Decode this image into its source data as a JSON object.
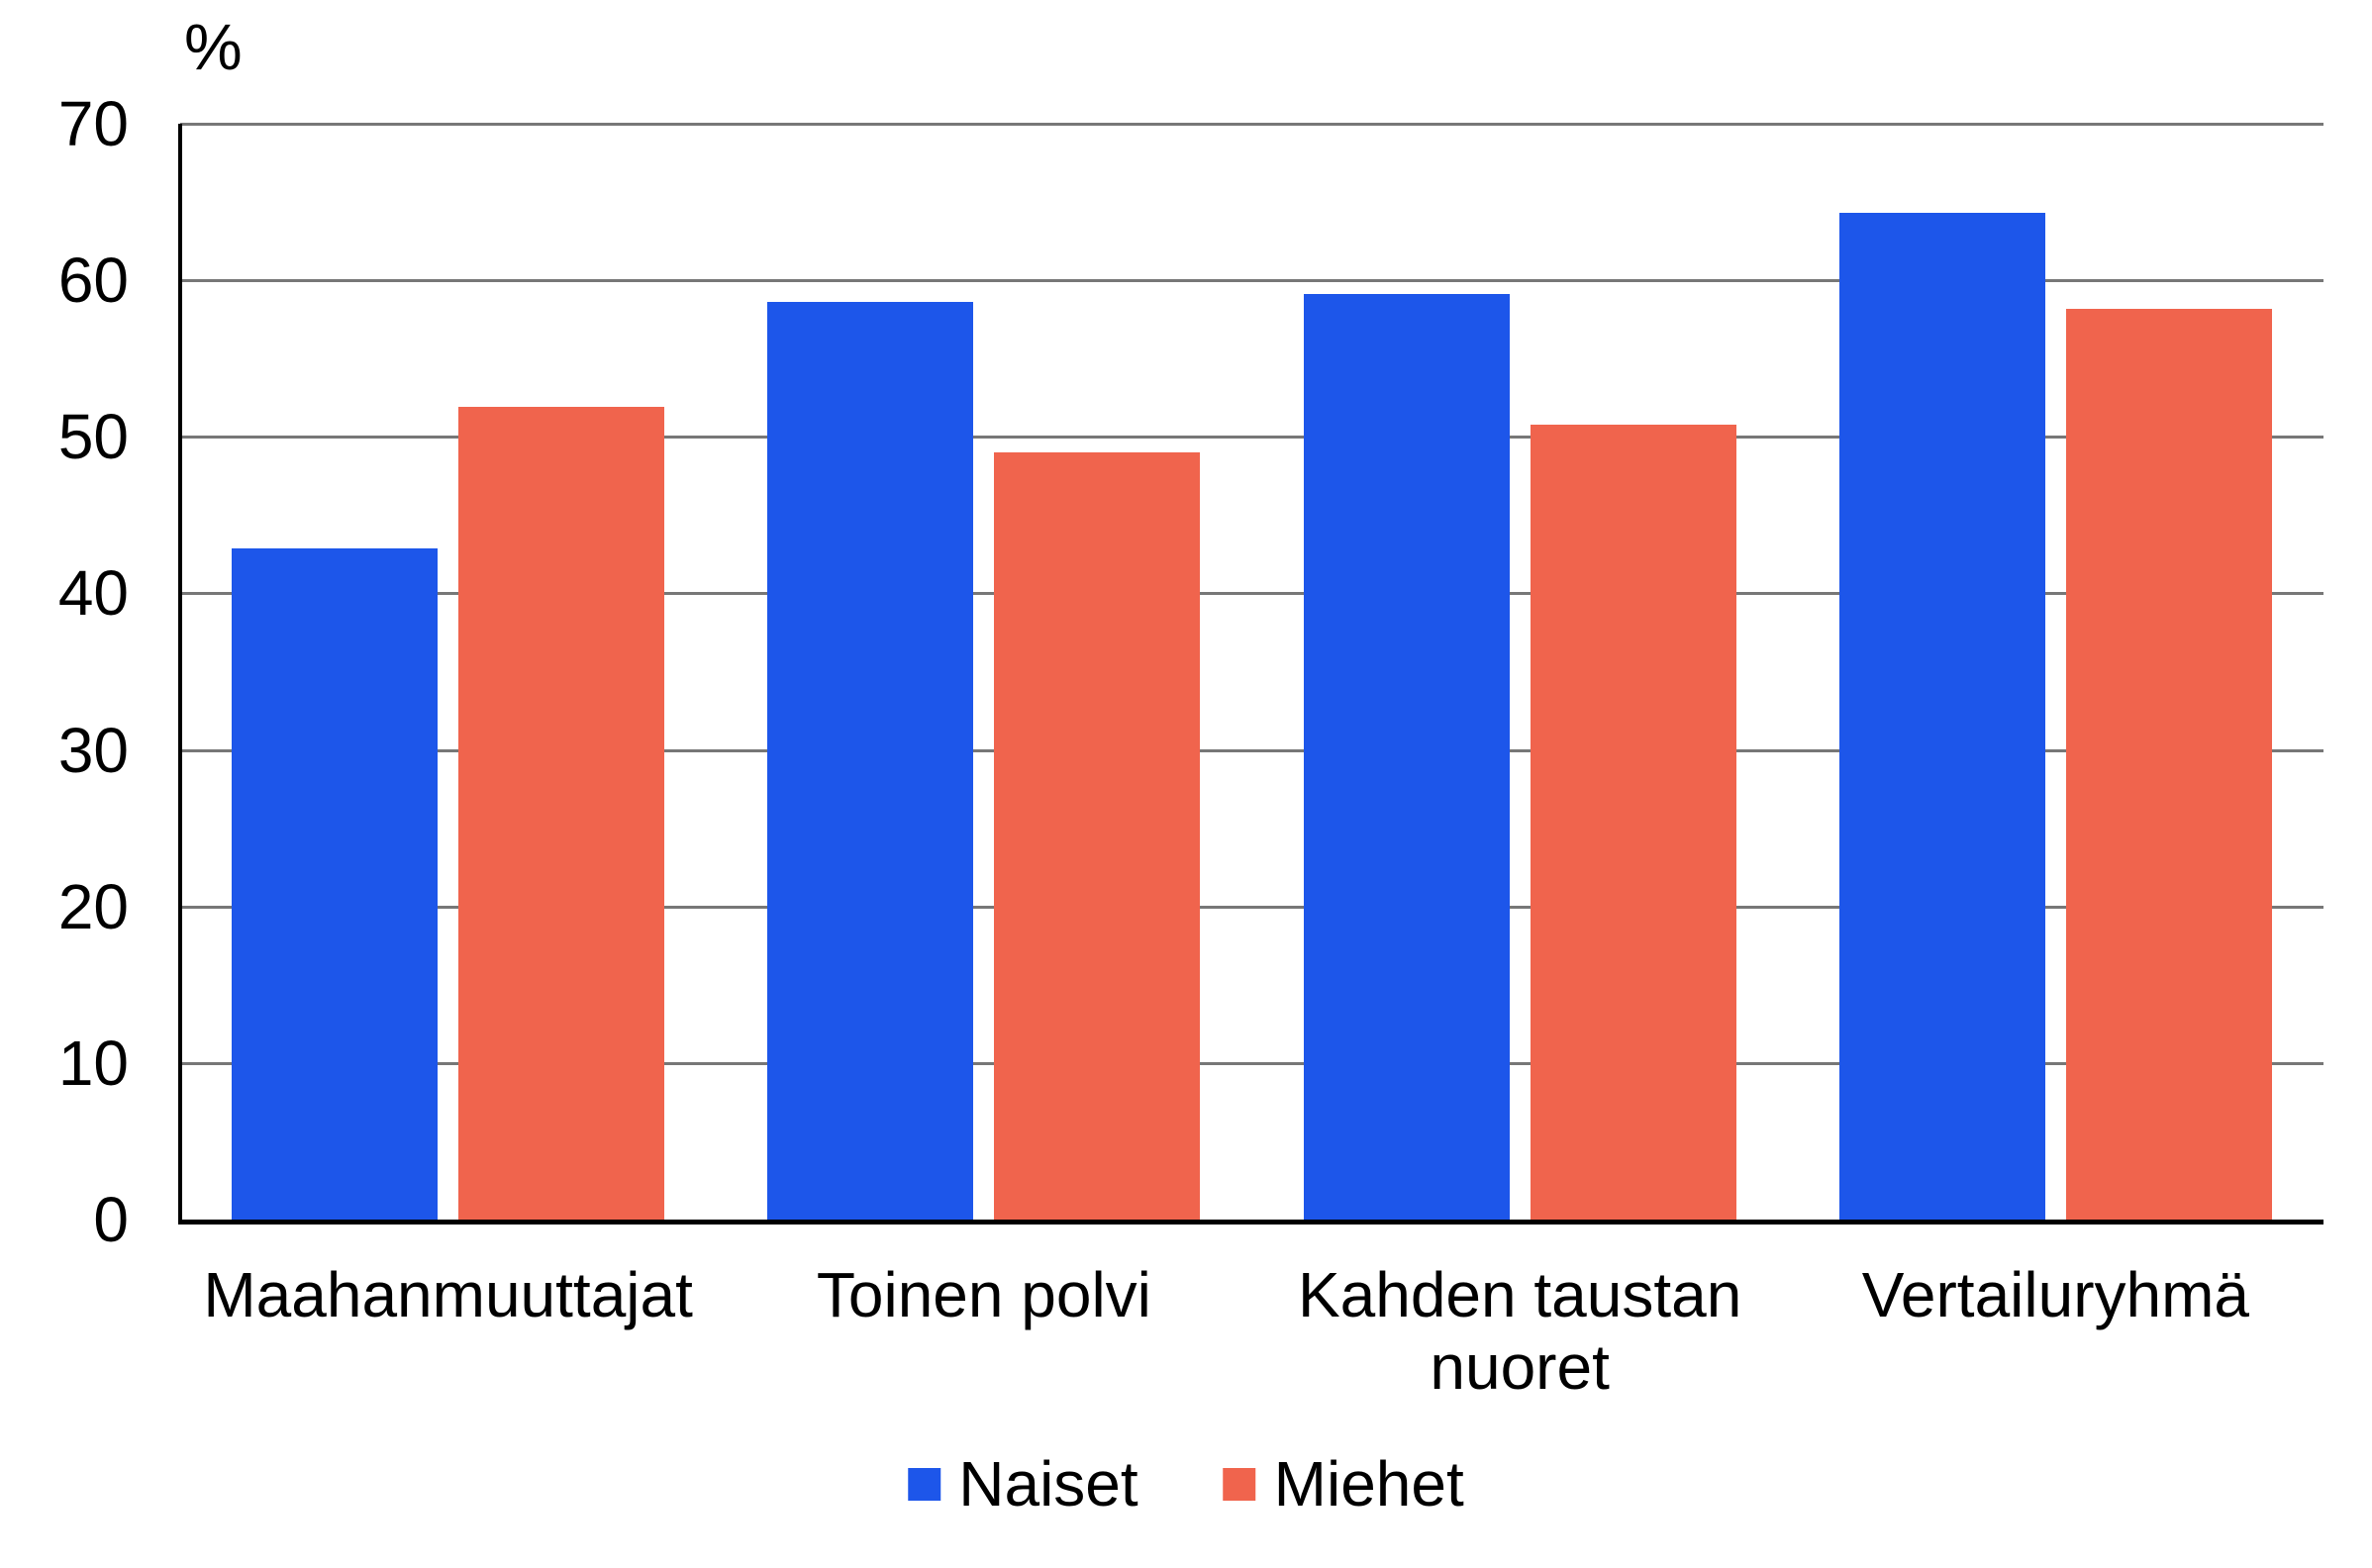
{
  "chart_data": {
    "type": "bar",
    "title": "",
    "ylabel": "%",
    "xlabel": "",
    "categories": [
      "Maahanmuuttajat",
      "Toinen polvi",
      "Kahden taustan\nnuoret",
      "Vertailuryhmä"
    ],
    "series": [
      {
        "name": "Naiset",
        "color": "#1d56ea",
        "values": [
          42.9,
          58.6,
          59.1,
          64.3
        ]
      },
      {
        "name": "Miehet",
        "color": "#f0644d",
        "values": [
          51.9,
          49.0,
          50.8,
          58.2
        ]
      }
    ],
    "ylim": [
      0,
      70
    ],
    "yticks": [
      0,
      10,
      20,
      30,
      40,
      50,
      60,
      70
    ],
    "grid": true,
    "legend_position": "bottom",
    "colors": {
      "background": "#ffffff",
      "axis": "#000000",
      "gridline": "#777777",
      "text": "#000000"
    }
  }
}
